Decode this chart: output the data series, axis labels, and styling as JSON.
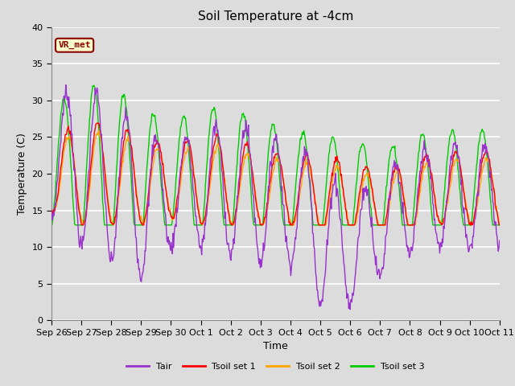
{
  "title": "Soil Temperature at -4cm",
  "xlabel": "Time",
  "ylabel": "Temperature (C)",
  "ylim": [
    0,
    40
  ],
  "background_color": "#dcdcdc",
  "plot_bg_color": "#dcdcdc",
  "grid_color": "white",
  "annotation_text": "VR_met",
  "annotation_bg": "#ffffcc",
  "annotation_border": "#8B0000",
  "annotation_text_color": "#8B0000",
  "line_colors": {
    "Tair": "#9932CC",
    "Tsoil1": "#FF0000",
    "Tsoil2": "#FFA500",
    "Tsoil3": "#00CC00"
  },
  "legend_labels": [
    "Tair",
    "Tsoil set 1",
    "Tsoil set 2",
    "Tsoil set 3"
  ],
  "tick_labels": [
    "Sep 26",
    "Sep 27",
    "Sep 28",
    "Sep 29",
    "Sep 30",
    "Oct 1",
    "Oct 2",
    "Oct 3",
    "Oct 4",
    "Oct 5",
    "Oct 6",
    "Oct 7",
    "Oct 8",
    "Oct 9",
    "Oct 10",
    "Oct 11"
  ],
  "num_days": 15,
  "points_per_day": 48,
  "figsize": [
    6.4,
    4.8
  ],
  "dpi": 100
}
